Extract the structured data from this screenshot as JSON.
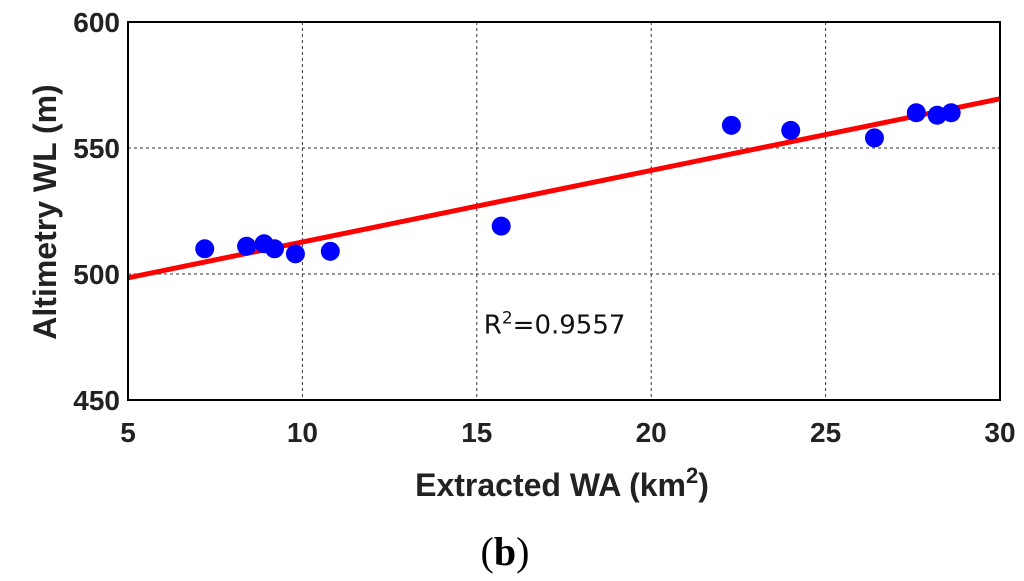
{
  "chart_data": {
    "type": "scatter",
    "xlabel_main": "Extracted WA (km",
    "xlabel_sup": "2",
    "xlabel_end": ")",
    "ylabel": "Altimetry WL (m)",
    "xlim": [
      5,
      30
    ],
    "ylim": [
      450,
      600
    ],
    "xticks": [
      5,
      10,
      15,
      20,
      25,
      30
    ],
    "yticks": [
      450,
      500,
      550,
      600
    ],
    "grid": true,
    "colors": {
      "points": "#0000ff",
      "fit_line": "#ff0000"
    },
    "series": [
      {
        "x": [
          7.2,
          8.4,
          8.9,
          9.2,
          9.8,
          10.8,
          15.7,
          22.3,
          24.0,
          26.4,
          27.6,
          28.2,
          28.6
        ],
        "y": [
          510,
          511,
          512,
          510,
          508,
          509,
          519,
          559,
          557,
          554,
          564,
          563,
          564
        ]
      }
    ],
    "fit_line": {
      "x": [
        5,
        30
      ],
      "y": [
        498.5,
        569.5
      ]
    },
    "annotation": {
      "prefix": "R",
      "sup": "2",
      "value": "=0.9557",
      "x": 15.2,
      "y": 480
    }
  },
  "caption": {
    "open": "(",
    "letter": "b",
    "close": ")"
  }
}
